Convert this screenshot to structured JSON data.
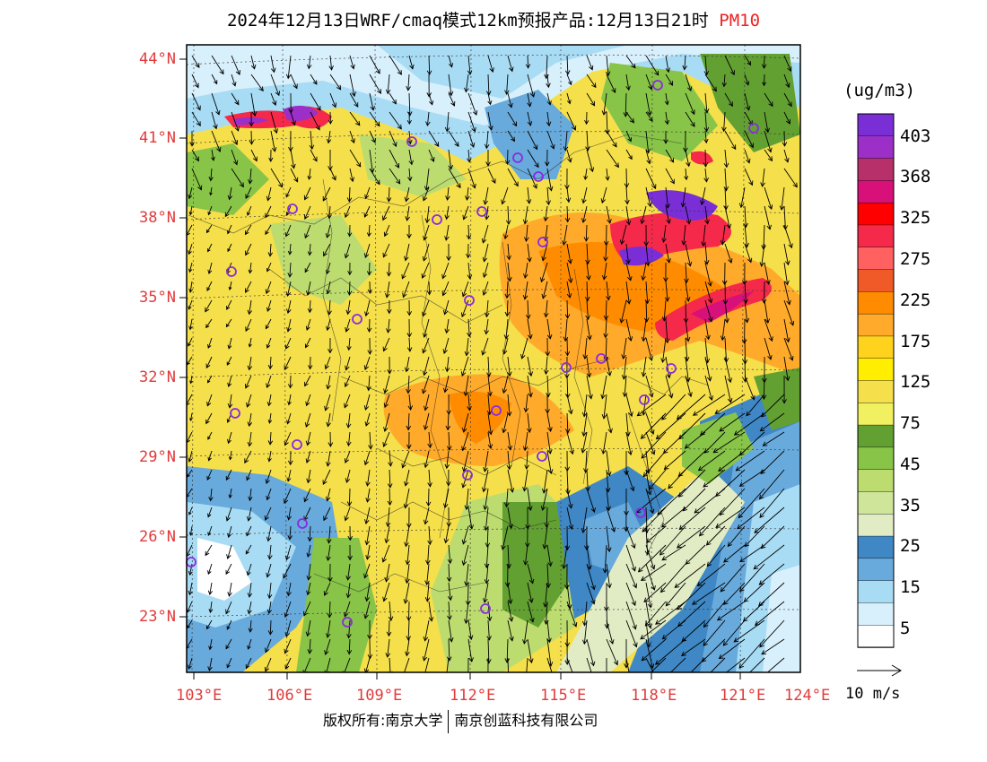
{
  "title": {
    "text": "2024年12月13日WRF/cmaq模式12km预报产品:12月13日21时",
    "pollutant": "PM10"
  },
  "map": {
    "lat_labels": [
      "44°N",
      "41°N",
      "38°N",
      "35°N",
      "32°N",
      "29°N",
      "26°N",
      "23°N"
    ],
    "lon_labels": [
      "103°E",
      "106°E",
      "109°E",
      "112°E",
      "115°E",
      "118°E",
      "121°E",
      "124°E"
    ]
  },
  "legend": {
    "unit": "(ug/m3)",
    "labels": [
      "403",
      "368",
      "325",
      "275",
      "225",
      "175",
      "125",
      "75",
      "45",
      "35",
      "25",
      "15",
      "5"
    ],
    "colors": [
      "#7a2fd6",
      "#9b2fc8",
      "#b8306a",
      "#d8107a",
      "#ff0000",
      "#f52a4a",
      "#ff6060",
      "#f05a28",
      "#ff8c00",
      "#ffaa2a",
      "#ffd21e",
      "#ffee00",
      "#f5df4a",
      "#f0f060",
      "#62a032",
      "#88c448",
      "#bcdc70",
      "#cfe69a",
      "#e2ecc4",
      "#3f88c5",
      "#68aadc",
      "#a8dcf4",
      "#d8f0fc",
      "#ffffff"
    ]
  },
  "wind_scale": {
    "label": "10 m/s"
  },
  "copyright": {
    "left": "版权所有:南京大学",
    "right": "南京创蓝科技有限公司"
  },
  "city_markers": 26
}
